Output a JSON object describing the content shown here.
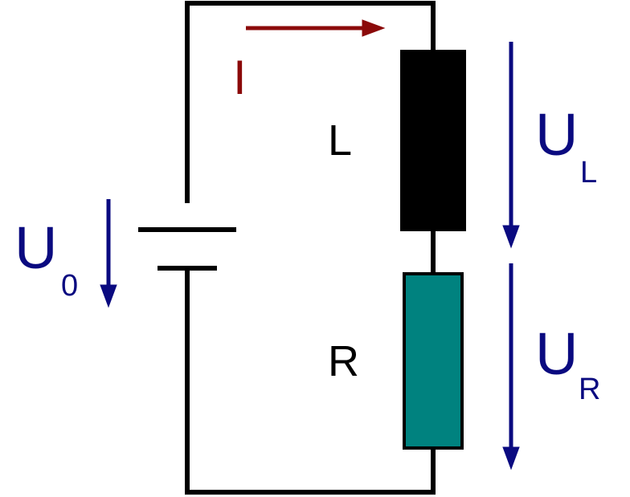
{
  "colors": {
    "wire": "#000000",
    "inductor_fill": "#000000",
    "resistor_fill": "#00827f",
    "voltage_arrow": "#0a0a80",
    "current_arrow": "#8b0a0a",
    "component_label": "#000000"
  },
  "current": {
    "label": "I"
  },
  "inductor": {
    "label": "L"
  },
  "resistor": {
    "label": "R"
  },
  "source_voltage": {
    "symbol": "U",
    "subscript": "0"
  },
  "inductor_voltage": {
    "symbol": "U",
    "subscript": "L"
  },
  "resistor_voltage": {
    "symbol": "U",
    "subscript": "R"
  }
}
